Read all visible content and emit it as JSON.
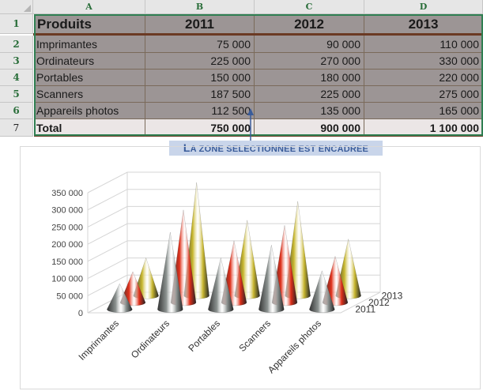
{
  "spreadsheet": {
    "column_headers": [
      "A",
      "B",
      "C",
      "D"
    ],
    "row_numbers": [
      "1",
      "2",
      "3",
      "4",
      "5",
      "6",
      "7"
    ],
    "header_row": [
      "Produits",
      "2011",
      "2012",
      "2013"
    ],
    "rows": [
      [
        "Imprimantes",
        "75 000",
        "90 000",
        "110 000"
      ],
      [
        "Ordinateurs",
        "225 000",
        "270 000",
        "330 000"
      ],
      [
        "Portables",
        "150 000",
        "180 000",
        "220 000"
      ],
      [
        "Scanners",
        "187 500",
        "225 000",
        "275 000"
      ],
      [
        "Appareils photos",
        "112 500",
        "135 000",
        "165 000"
      ]
    ],
    "total_row": [
      "Total",
      "750 000",
      "900 000",
      "1 100 000"
    ],
    "selection_color": "#2f7f52"
  },
  "callout": {
    "text": "La zone selectionnee est encadree",
    "parts": [
      "L",
      "A ZONE SELECTIONNEE EST ENCADREE"
    ],
    "background": "#c9d5ea",
    "color": "#3a5c9a"
  },
  "chart_data": {
    "type": "bar",
    "style": "3d-cone",
    "categories": [
      "Imprimantes",
      "Ordinateurs",
      "Portables",
      "Scanners",
      "Appareils photos"
    ],
    "series": [
      {
        "name": "2011",
        "values": [
          75000,
          225000,
          150000,
          187500,
          112500
        ],
        "color": "#8c9391"
      },
      {
        "name": "2012",
        "values": [
          90000,
          270000,
          180000,
          225000,
          135000
        ],
        "color": "#e0301a"
      },
      {
        "name": "2013",
        "values": [
          110000,
          330000,
          220000,
          275000,
          165000
        ],
        "color": "#c9b830"
      }
    ],
    "y_ticks": [
      "0",
      "50 000",
      "100 000",
      "150 000",
      "200 000",
      "250 000",
      "300 000",
      "350 000"
    ],
    "ylim": [
      0,
      350000
    ],
    "depth_labels": [
      "2011",
      "2012",
      "2013"
    ],
    "grid": true,
    "legend": "none"
  }
}
